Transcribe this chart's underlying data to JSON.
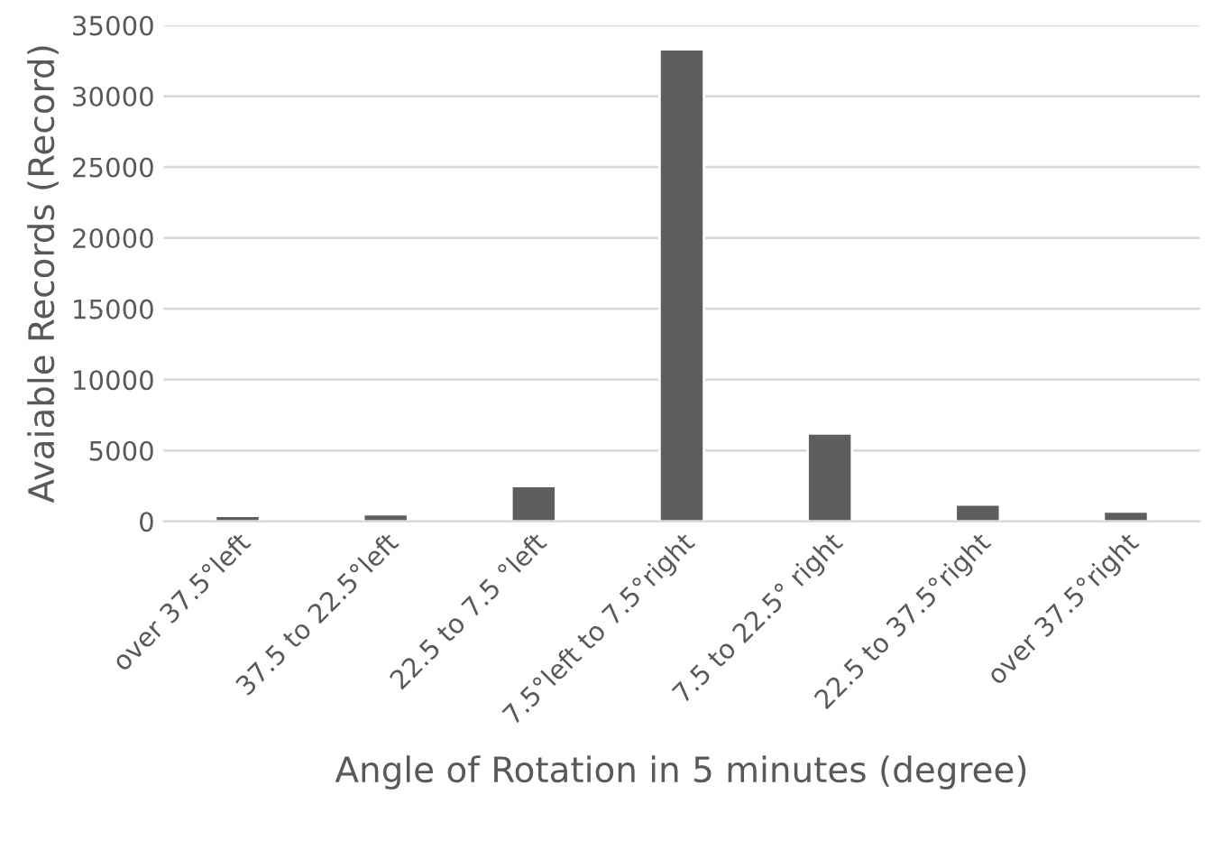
{
  "chart_data": {
    "type": "bar",
    "xlabel": "Angle of Rotation in 5 minutes (degree)",
    "ylabel": "Avaiable Records (Record)",
    "categories": [
      "over 37.5°left",
      "37.5 to 22.5°left",
      "22.5 to 7.5 °left",
      "7.5°left to 7.5°right",
      "7.5 to 22.5° right",
      "22.5 to 37.5°right",
      "over 37.5°right"
    ],
    "values": [
      400,
      500,
      2500,
      33300,
      6200,
      1200,
      700
    ],
    "color": "#5e5e5e",
    "ylim": [
      0,
      35000
    ],
    "yticks": [
      0,
      5000,
      10000,
      15000,
      20000,
      25000,
      30000,
      35000
    ],
    "grid": "y"
  }
}
